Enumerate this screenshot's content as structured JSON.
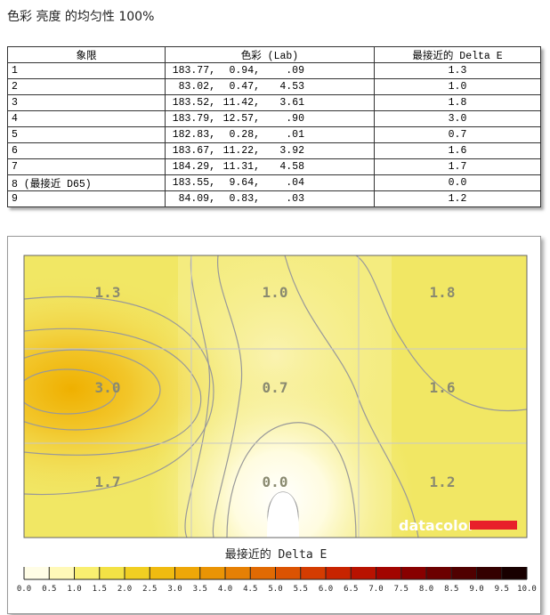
{
  "title": "色彩 亮度 的均匀性 100%",
  "table": {
    "header": [
      "象限",
      "色彩 (Lab)",
      "最接近的 Delta E"
    ],
    "rows": [
      [
        "1",
        [
          "183.77,",
          "0.94,",
          ".09"
        ],
        "1.3"
      ],
      [
        "2",
        [
          "83.02,",
          "0.47,",
          "4.53"
        ],
        "1.0"
      ],
      [
        "3",
        [
          "183.52,",
          "11.42,",
          "3.61"
        ],
        "1.8"
      ],
      [
        "4",
        [
          "183.79,",
          "12.57,",
          ".90"
        ],
        "3.0"
      ],
      [
        "5",
        [
          "182.83,",
          "0.28,",
          ".01"
        ],
        "0.7"
      ],
      [
        "6",
        [
          "183.67,",
          "11.22,",
          "3.92"
        ],
        "1.6"
      ],
      [
        "7",
        [
          "184.29,",
          "11.31,",
          "4.58"
        ],
        "1.7"
      ],
      [
        "8 (最接近 D65)",
        [
          "183.55,",
          "9.64,",
          ".04"
        ],
        "0.0"
      ],
      [
        "9",
        [
          "84.09,",
          "0.83,",
          ".03"
        ],
        "1.2"
      ]
    ]
  },
  "heatmap": {
    "cells": [
      [
        "1.3",
        "1.0",
        "1.8"
      ],
      [
        "3.0",
        "0.7",
        "1.6"
      ],
      [
        "1.7",
        "0.0",
        "1.2"
      ]
    ],
    "logo": "datacolor",
    "colorbar_title": "最接近的 Delta E",
    "colorbar_ticks": [
      "0.0",
      "0.5",
      "1.0",
      "1.5",
      "2.0",
      "2.5",
      "3.0",
      "3.5",
      "4.0",
      "4.5",
      "5.0",
      "5.5",
      "6.0",
      "6.5",
      "7.0",
      "7.5",
      "8.0",
      "8.5",
      "9.0",
      "9.5",
      "10.0"
    ]
  }
}
